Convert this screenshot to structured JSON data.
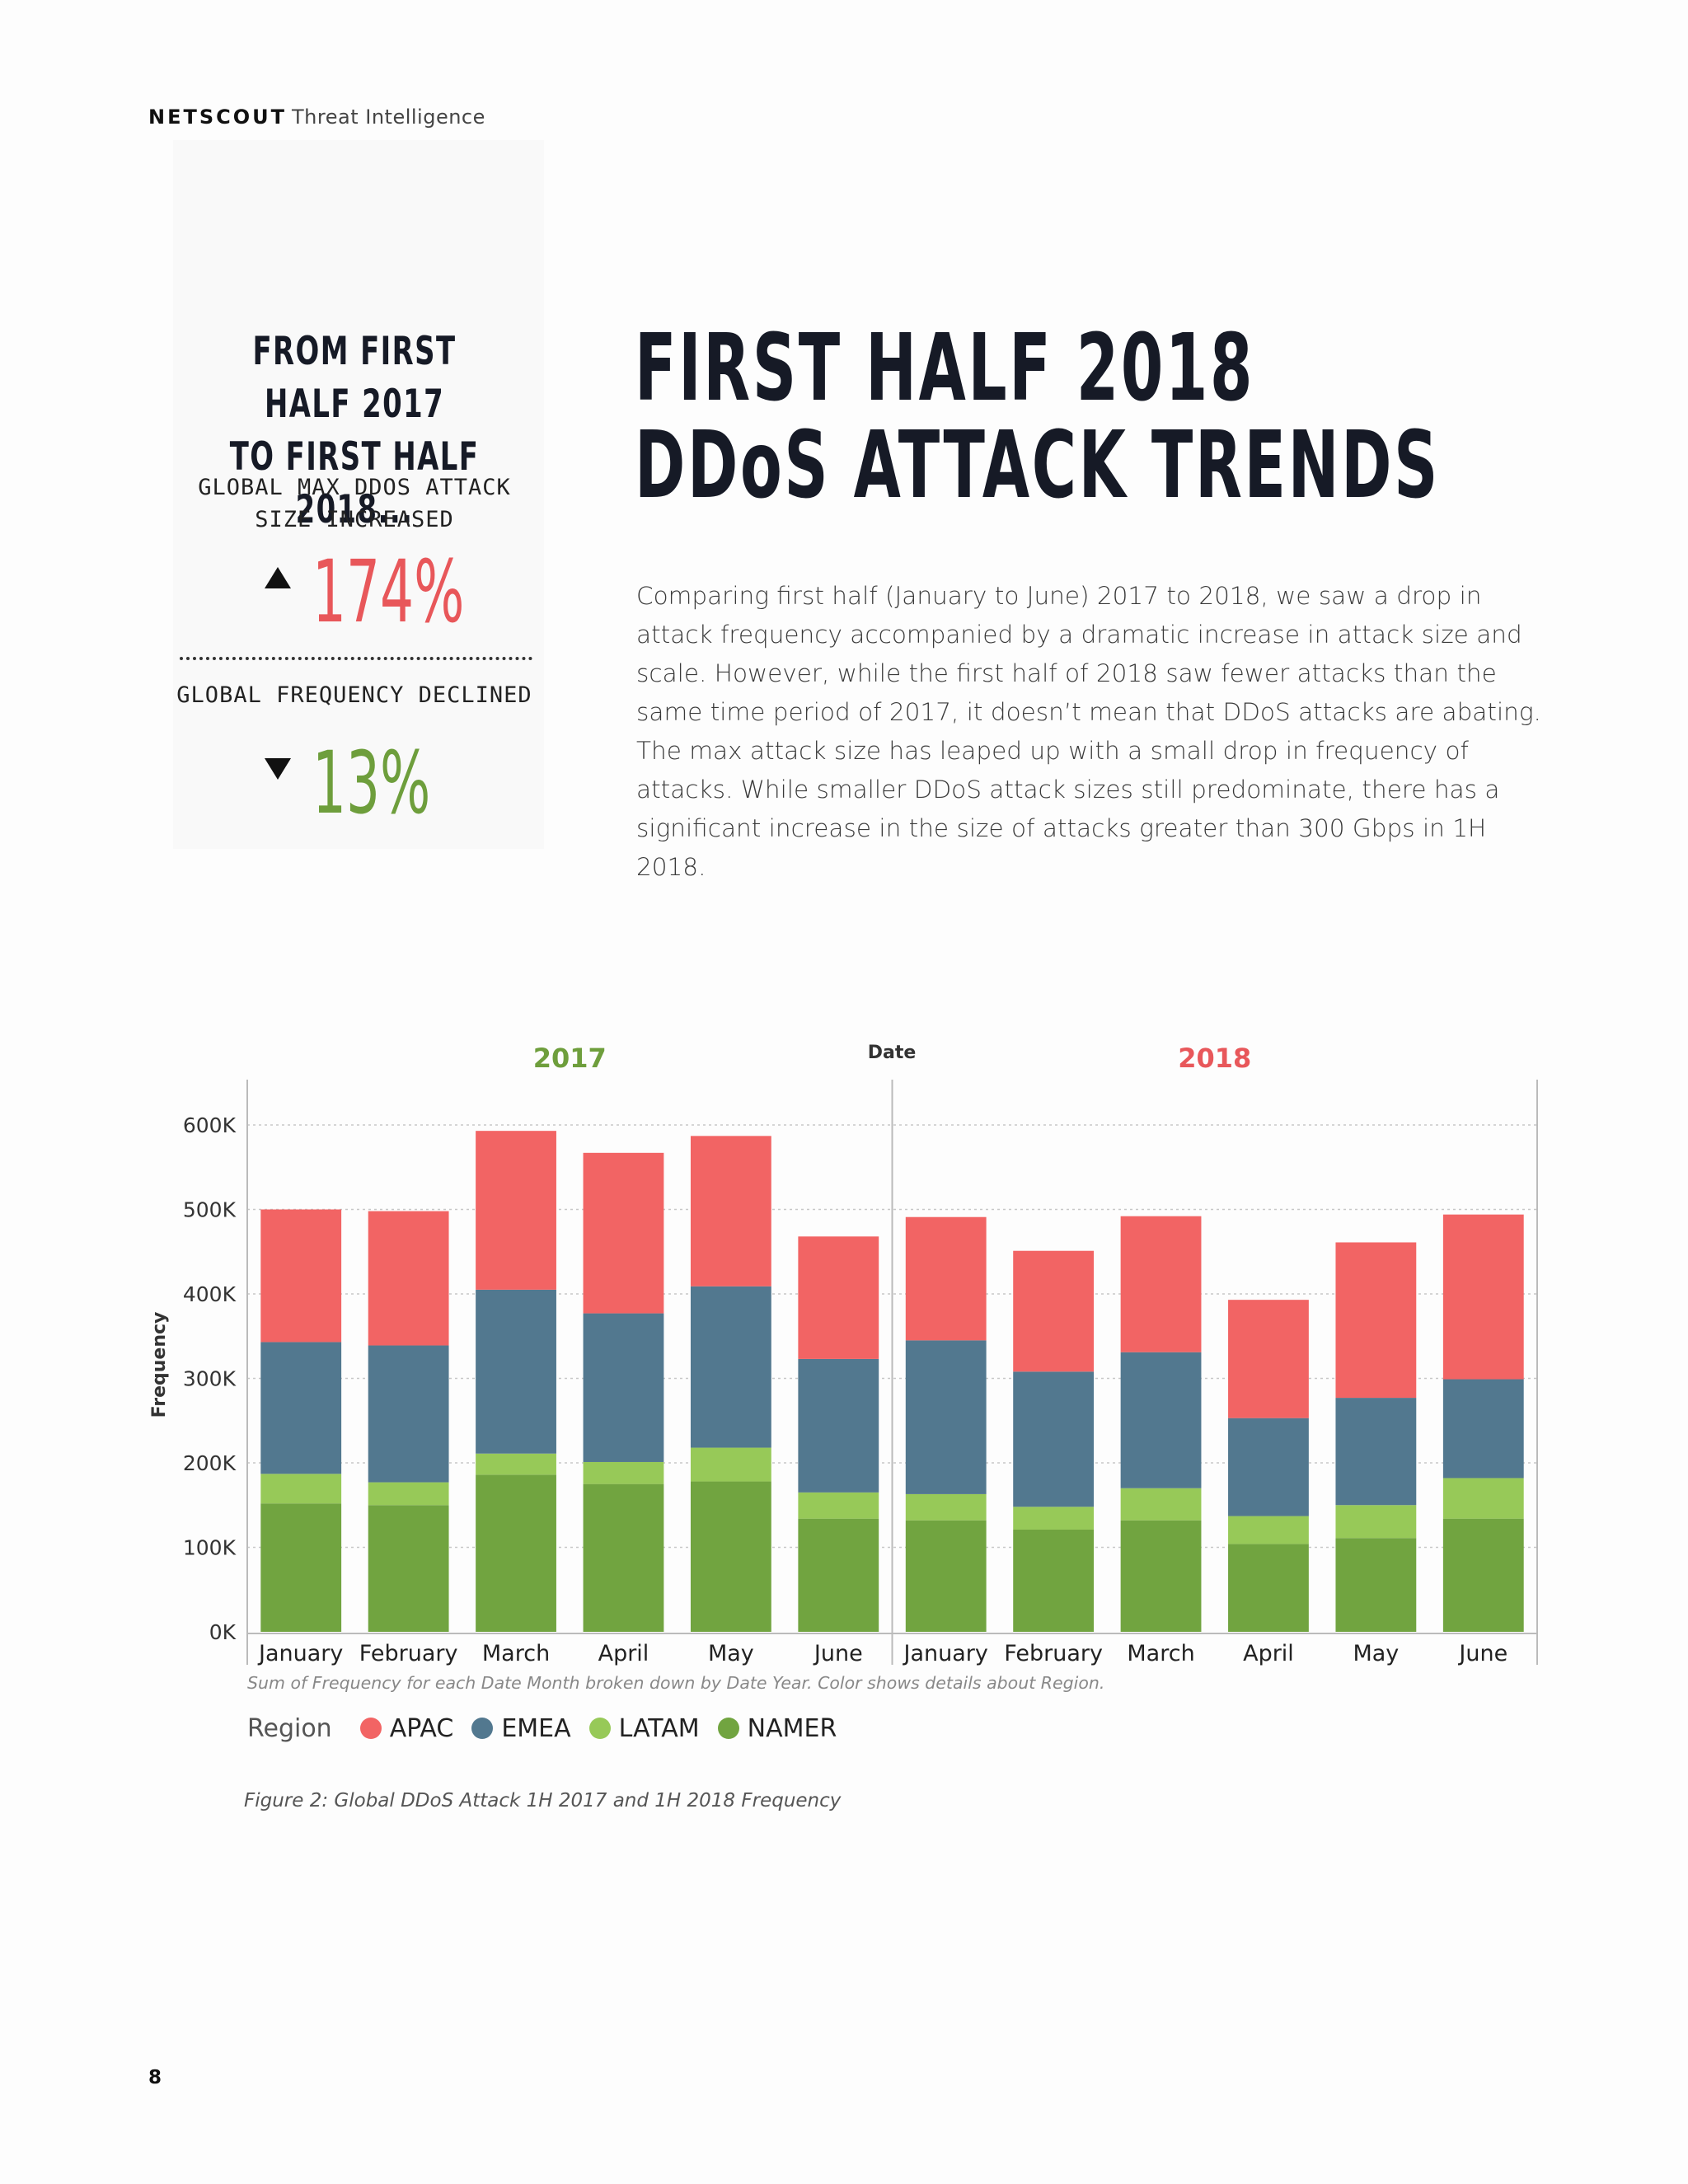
{
  "header": {
    "brand": "NETSCOUT",
    "subtitle": "Threat Intelligence"
  },
  "sidebar": {
    "title_line1": "FROM FIRST HALF 2017",
    "title_line2": "TO FIRST HALF 2018...",
    "stat1_label_line1": "GLOBAL MAX DDOS ATTACK",
    "stat1_label_line2": "SIZE INCREASED",
    "stat1_value": "174%",
    "stat1_color": "#e8575a",
    "stat2_label": "GLOBAL FREQUENCY DECLINED",
    "stat2_value": "13%",
    "stat2_color": "#6e9e3c"
  },
  "main": {
    "title_line1": "FIRST HALF 2018",
    "title_line2": "DDoS ATTACK TRENDS",
    "body": "Comparing first half (January to June) 2017 to 2018, we saw a drop in attack frequency accompanied by a dramatic increase in attack size and scale. However, while the first half of 2018 saw fewer attacks than the same time period of 2017, it doesn’t mean that DDoS attacks are abating. The max attack size has leaped up with a small drop in frequency of attacks. While smaller DDoS attack sizes still predominate, there has a significant increase in the size of attacks greater than 300 Gbps in 1H 2018."
  },
  "chart_data": {
    "type": "bar",
    "stacked": true,
    "title": "Date",
    "xlabel": "",
    "ylabel": "Frequency",
    "ylim": [
      0,
      600000
    ],
    "yticks": [
      "0K",
      "100K",
      "200K",
      "300K",
      "400K",
      "500K",
      "600K"
    ],
    "ytick_values": [
      0,
      100000,
      200000,
      300000,
      400000,
      500000,
      600000
    ],
    "grid": true,
    "groups": [
      {
        "label": "2017",
        "color": "#6e9e3c"
      },
      {
        "label": "2018",
        "color": "#e8575a"
      }
    ],
    "categories": [
      "January",
      "February",
      "March",
      "April",
      "May",
      "June",
      "January",
      "February",
      "March",
      "April",
      "May",
      "June"
    ],
    "series": [
      {
        "name": "NAMER",
        "color": "#71a440",
        "values": [
          152000,
          150000,
          186000,
          175000,
          178000,
          134000,
          132000,
          121000,
          132000,
          104000,
          111000,
          134000
        ]
      },
      {
        "name": "LATAM",
        "color": "#97c958",
        "values": [
          35000,
          27000,
          25000,
          26000,
          40000,
          31000,
          31000,
          27000,
          38000,
          33000,
          39000,
          48000
        ]
      },
      {
        "name": "EMEA",
        "color": "#52788f",
        "values": [
          156000,
          162000,
          194000,
          176000,
          191000,
          158000,
          182000,
          160000,
          161000,
          116000,
          127000,
          117000
        ]
      },
      {
        "name": "APAC",
        "color": "#f26464",
        "values": [
          157000,
          159000,
          188000,
          190000,
          178000,
          145000,
          146000,
          143000,
          161000,
          140000,
          184000,
          195000
        ]
      }
    ],
    "legend_title": "Region",
    "legend_order": [
      "APAC",
      "EMEA",
      "LATAM",
      "NAMER"
    ],
    "legend_position": "bottom-left",
    "caption": "Sum of Frequency for each Date Month broken down by Date Year. Color shows details about Region."
  },
  "figure_caption": "Figure 2:  Global DDoS Attack 1H 2017 and 1H 2018 Frequency",
  "page_number": "8"
}
